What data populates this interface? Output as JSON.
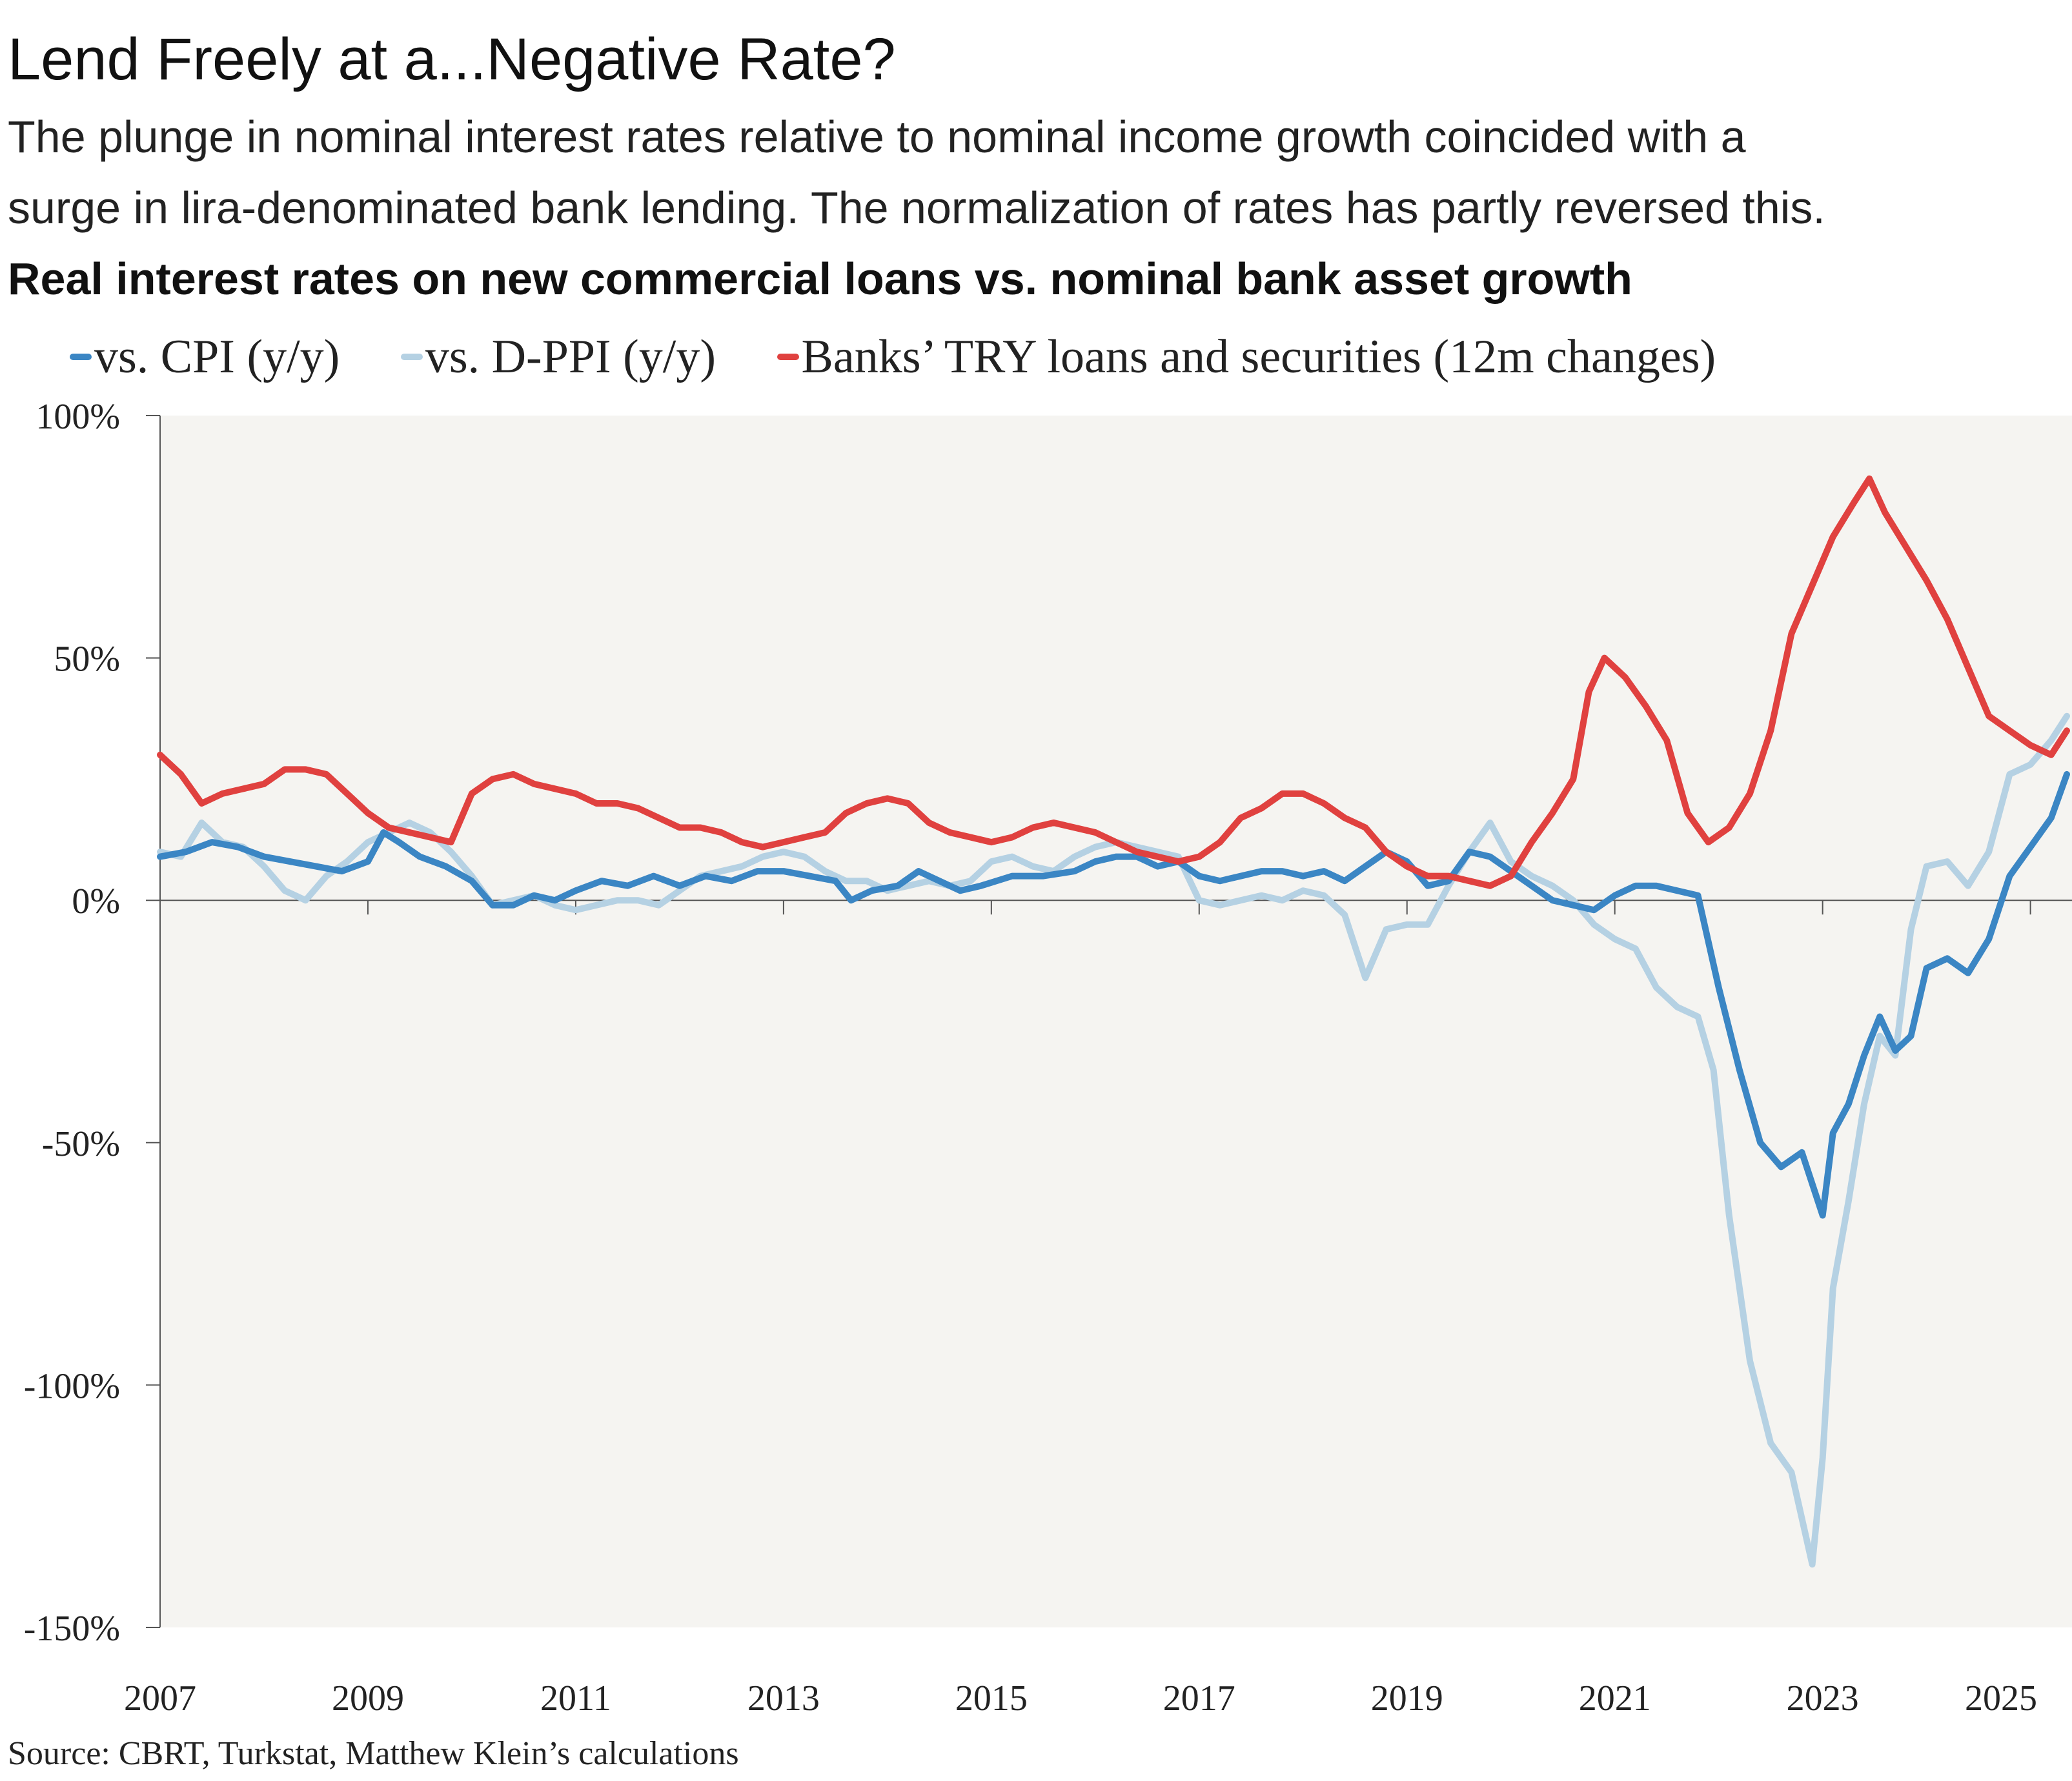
{
  "title": "Lend Freely at a...Negative Rate?",
  "subtitle_line1": "The plunge in nominal interest rates relative to nominal income growth coincided with a",
  "subtitle_line2": "surge in lira-denominated bank lending. The normalization of rates has partly reversed this.",
  "chart_title": "Real interest rates on new commercial loans vs. nominal bank asset growth",
  "source": "Source: CBRT, Turkstat, Matthew Klein’s calculations",
  "colors": {
    "background": "#f5f4f1",
    "cpi": "#3b86c4",
    "dppi": "#b5d1e3",
    "banks": "#e0413f",
    "axis": "#555555"
  },
  "chart_data": {
    "type": "line",
    "xlim": [
      2007,
      2025.4
    ],
    "ylim": [
      -150,
      100
    ],
    "y_ticks": [
      100,
      50,
      0,
      -50,
      -100,
      -150
    ],
    "y_tick_labels": [
      "100%",
      "50%",
      "0%",
      "-50%",
      "-100%",
      "-150%"
    ],
    "x_ticks": [
      2007,
      2009,
      2011,
      2013,
      2015,
      2017,
      2019,
      2021,
      2023,
      2025
    ],
    "x_tick_labels": [
      "2007",
      "2009",
      "2011",
      "2013",
      "2015",
      "2017",
      "2019",
      "2021",
      "2023",
      "2025"
    ],
    "grid": false,
    "legend_position": "top",
    "series": [
      {
        "name": "vs. CPI (y/y)",
        "color": "#3b86c4",
        "points": [
          [
            2007.0,
            9
          ],
          [
            2007.25,
            10
          ],
          [
            2007.5,
            12
          ],
          [
            2007.75,
            11
          ],
          [
            2008.0,
            9
          ],
          [
            2008.25,
            8
          ],
          [
            2008.5,
            7
          ],
          [
            2008.75,
            6
          ],
          [
            2009.0,
            8
          ],
          [
            2009.15,
            14
          ],
          [
            2009.3,
            12
          ],
          [
            2009.5,
            9
          ],
          [
            2009.75,
            7
          ],
          [
            2010.0,
            4
          ],
          [
            2010.2,
            -1
          ],
          [
            2010.4,
            -1
          ],
          [
            2010.6,
            1
          ],
          [
            2010.8,
            0
          ],
          [
            2011.0,
            2
          ],
          [
            2011.25,
            4
          ],
          [
            2011.5,
            3
          ],
          [
            2011.75,
            5
          ],
          [
            2012.0,
            3
          ],
          [
            2012.25,
            5
          ],
          [
            2012.5,
            4
          ],
          [
            2012.75,
            6
          ],
          [
            2013.0,
            6
          ],
          [
            2013.25,
            5
          ],
          [
            2013.5,
            4
          ],
          [
            2013.65,
            0
          ],
          [
            2013.85,
            2
          ],
          [
            2014.1,
            3
          ],
          [
            2014.3,
            6
          ],
          [
            2014.5,
            4
          ],
          [
            2014.7,
            2
          ],
          [
            2014.9,
            3
          ],
          [
            2015.2,
            5
          ],
          [
            2015.5,
            5
          ],
          [
            2015.8,
            6
          ],
          [
            2016.0,
            8
          ],
          [
            2016.2,
            9
          ],
          [
            2016.4,
            9
          ],
          [
            2016.6,
            7
          ],
          [
            2016.8,
            8
          ],
          [
            2017.0,
            5
          ],
          [
            2017.2,
            4
          ],
          [
            2017.4,
            5
          ],
          [
            2017.6,
            6
          ],
          [
            2017.8,
            6
          ],
          [
            2018.0,
            5
          ],
          [
            2018.2,
            6
          ],
          [
            2018.4,
            4
          ],
          [
            2018.6,
            7
          ],
          [
            2018.8,
            10
          ],
          [
            2019.0,
            8
          ],
          [
            2019.2,
            3
          ],
          [
            2019.4,
            4
          ],
          [
            2019.6,
            10
          ],
          [
            2019.8,
            9
          ],
          [
            2020.0,
            6
          ],
          [
            2020.2,
            3
          ],
          [
            2020.4,
            0
          ],
          [
            2020.6,
            -1
          ],
          [
            2020.8,
            -2
          ],
          [
            2021.0,
            1
          ],
          [
            2021.2,
            3
          ],
          [
            2021.4,
            3
          ],
          [
            2021.6,
            2
          ],
          [
            2021.8,
            1
          ],
          [
            2022.0,
            -18
          ],
          [
            2022.2,
            -35
          ],
          [
            2022.4,
            -50
          ],
          [
            2022.6,
            -55
          ],
          [
            2022.8,
            -52
          ],
          [
            2023.0,
            -65
          ],
          [
            2023.1,
            -48
          ],
          [
            2023.25,
            -42
          ],
          [
            2023.4,
            -32
          ],
          [
            2023.55,
            -24
          ],
          [
            2023.7,
            -31
          ],
          [
            2023.85,
            -28
          ],
          [
            2024.0,
            -14
          ],
          [
            2024.2,
            -12
          ],
          [
            2024.4,
            -15
          ],
          [
            2024.6,
            -8
          ],
          [
            2024.8,
            5
          ],
          [
            2025.0,
            11
          ],
          [
            2025.2,
            17
          ],
          [
            2025.35,
            26
          ]
        ]
      },
      {
        "name": "vs. D-PPI (y/y)",
        "color": "#b5d1e3",
        "points": [
          [
            2007.0,
            10
          ],
          [
            2007.2,
            9
          ],
          [
            2007.4,
            16
          ],
          [
            2007.6,
            12
          ],
          [
            2007.8,
            11
          ],
          [
            2008.0,
            7
          ],
          [
            2008.2,
            2
          ],
          [
            2008.4,
            0
          ],
          [
            2008.6,
            5
          ],
          [
            2008.8,
            8
          ],
          [
            2009.0,
            12
          ],
          [
            2009.2,
            14
          ],
          [
            2009.4,
            16
          ],
          [
            2009.6,
            14
          ],
          [
            2009.8,
            10
          ],
          [
            2010.0,
            5
          ],
          [
            2010.2,
            -1
          ],
          [
            2010.4,
            0
          ],
          [
            2010.6,
            1
          ],
          [
            2010.8,
            -1
          ],
          [
            2011.0,
            -2
          ],
          [
            2011.2,
            -1
          ],
          [
            2011.4,
            0
          ],
          [
            2011.6,
            0
          ],
          [
            2011.8,
            -1
          ],
          [
            2012.0,
            2
          ],
          [
            2012.2,
            5
          ],
          [
            2012.4,
            6
          ],
          [
            2012.6,
            7
          ],
          [
            2012.8,
            9
          ],
          [
            2013.0,
            10
          ],
          [
            2013.2,
            9
          ],
          [
            2013.4,
            6
          ],
          [
            2013.6,
            4
          ],
          [
            2013.8,
            4
          ],
          [
            2014.0,
            2
          ],
          [
            2014.2,
            3
          ],
          [
            2014.4,
            4
          ],
          [
            2014.6,
            3
          ],
          [
            2014.8,
            4
          ],
          [
            2015.0,
            8
          ],
          [
            2015.2,
            9
          ],
          [
            2015.4,
            7
          ],
          [
            2015.6,
            6
          ],
          [
            2015.8,
            9
          ],
          [
            2016.0,
            11
          ],
          [
            2016.2,
            12
          ],
          [
            2016.4,
            11
          ],
          [
            2016.6,
            10
          ],
          [
            2016.8,
            9
          ],
          [
            2017.0,
            0
          ],
          [
            2017.2,
            -1
          ],
          [
            2017.4,
            0
          ],
          [
            2017.6,
            1
          ],
          [
            2017.8,
            0
          ],
          [
            2018.0,
            2
          ],
          [
            2018.2,
            1
          ],
          [
            2018.4,
            -3
          ],
          [
            2018.6,
            -16
          ],
          [
            2018.8,
            -6
          ],
          [
            2019.0,
            -5
          ],
          [
            2019.2,
            -5
          ],
          [
            2019.4,
            3
          ],
          [
            2019.6,
            10
          ],
          [
            2019.8,
            16
          ],
          [
            2020.0,
            8
          ],
          [
            2020.2,
            5
          ],
          [
            2020.4,
            3
          ],
          [
            2020.6,
            0
          ],
          [
            2020.8,
            -5
          ],
          [
            2021.0,
            -8
          ],
          [
            2021.2,
            -10
          ],
          [
            2021.4,
            -18
          ],
          [
            2021.6,
            -22
          ],
          [
            2021.8,
            -24
          ],
          [
            2021.95,
            -35
          ],
          [
            2022.1,
            -65
          ],
          [
            2022.3,
            -95
          ],
          [
            2022.5,
            -112
          ],
          [
            2022.7,
            -118
          ],
          [
            2022.9,
            -137
          ],
          [
            2023.0,
            -115
          ],
          [
            2023.1,
            -80
          ],
          [
            2023.25,
            -62
          ],
          [
            2023.4,
            -42
          ],
          [
            2023.55,
            -28
          ],
          [
            2023.7,
            -32
          ],
          [
            2023.85,
            -6
          ],
          [
            2024.0,
            7
          ],
          [
            2024.2,
            8
          ],
          [
            2024.4,
            3
          ],
          [
            2024.6,
            10
          ],
          [
            2024.8,
            26
          ],
          [
            2025.0,
            28
          ],
          [
            2025.2,
            33
          ],
          [
            2025.35,
            38
          ]
        ]
      },
      {
        "name": "Banks’ TRY loans and securities (12m changes)",
        "color": "#e0413f",
        "points": [
          [
            2007.0,
            30
          ],
          [
            2007.2,
            26
          ],
          [
            2007.4,
            20
          ],
          [
            2007.6,
            22
          ],
          [
            2007.8,
            23
          ],
          [
            2008.0,
            24
          ],
          [
            2008.2,
            27
          ],
          [
            2008.4,
            27
          ],
          [
            2008.6,
            26
          ],
          [
            2008.8,
            22
          ],
          [
            2009.0,
            18
          ],
          [
            2009.2,
            15
          ],
          [
            2009.4,
            14
          ],
          [
            2009.6,
            13
          ],
          [
            2009.8,
            12
          ],
          [
            2010.0,
            22
          ],
          [
            2010.2,
            25
          ],
          [
            2010.4,
            26
          ],
          [
            2010.6,
            24
          ],
          [
            2010.8,
            23
          ],
          [
            2011.0,
            22
          ],
          [
            2011.2,
            20
          ],
          [
            2011.4,
            20
          ],
          [
            2011.6,
            19
          ],
          [
            2011.8,
            17
          ],
          [
            2012.0,
            15
          ],
          [
            2012.2,
            15
          ],
          [
            2012.4,
            14
          ],
          [
            2012.6,
            12
          ],
          [
            2012.8,
            11
          ],
          [
            2013.0,
            12
          ],
          [
            2013.2,
            13
          ],
          [
            2013.4,
            14
          ],
          [
            2013.6,
            18
          ],
          [
            2013.8,
            20
          ],
          [
            2014.0,
            21
          ],
          [
            2014.2,
            20
          ],
          [
            2014.4,
            16
          ],
          [
            2014.6,
            14
          ],
          [
            2014.8,
            13
          ],
          [
            2015.0,
            12
          ],
          [
            2015.2,
            13
          ],
          [
            2015.4,
            15
          ],
          [
            2015.6,
            16
          ],
          [
            2015.8,
            15
          ],
          [
            2016.0,
            14
          ],
          [
            2016.2,
            12
          ],
          [
            2016.4,
            10
          ],
          [
            2016.6,
            9
          ],
          [
            2016.8,
            8
          ],
          [
            2017.0,
            9
          ],
          [
            2017.2,
            12
          ],
          [
            2017.4,
            17
          ],
          [
            2017.6,
            19
          ],
          [
            2017.8,
            22
          ],
          [
            2018.0,
            22
          ],
          [
            2018.2,
            20
          ],
          [
            2018.4,
            17
          ],
          [
            2018.6,
            15
          ],
          [
            2018.8,
            10
          ],
          [
            2019.0,
            7
          ],
          [
            2019.2,
            5
          ],
          [
            2019.4,
            5
          ],
          [
            2019.6,
            4
          ],
          [
            2019.8,
            3
          ],
          [
            2020.0,
            5
          ],
          [
            2020.2,
            12
          ],
          [
            2020.4,
            18
          ],
          [
            2020.6,
            25
          ],
          [
            2020.75,
            43
          ],
          [
            2020.9,
            50
          ],
          [
            2021.1,
            46
          ],
          [
            2021.3,
            40
          ],
          [
            2021.5,
            33
          ],
          [
            2021.7,
            18
          ],
          [
            2021.9,
            12
          ],
          [
            2022.1,
            15
          ],
          [
            2022.3,
            22
          ],
          [
            2022.5,
            35
          ],
          [
            2022.7,
            55
          ],
          [
            2022.9,
            65
          ],
          [
            2023.1,
            75
          ],
          [
            2023.3,
            82
          ],
          [
            2023.45,
            87
          ],
          [
            2023.6,
            80
          ],
          [
            2023.8,
            73
          ],
          [
            2024.0,
            66
          ],
          [
            2024.2,
            58
          ],
          [
            2024.4,
            48
          ],
          [
            2024.6,
            38
          ],
          [
            2024.8,
            35
          ],
          [
            2025.0,
            32
          ],
          [
            2025.2,
            30
          ],
          [
            2025.35,
            35
          ]
        ]
      }
    ]
  }
}
